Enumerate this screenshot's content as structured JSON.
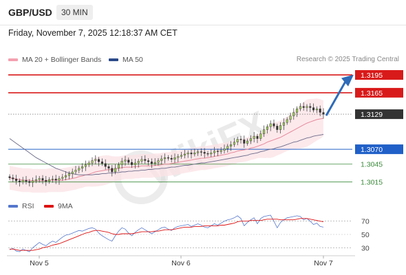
{
  "header": {
    "symbol": "GBP/USD",
    "timeframe": "30 MIN"
  },
  "datetime": "Friday, November 7, 2025 12:18:37 AM CET",
  "legend": {
    "ma": {
      "label": "MA 20 + Bollinger Bands",
      "color": "#f4a0b0"
    },
    "ma50": {
      "label": "MA 50",
      "color": "#2b4a8a"
    }
  },
  "source": "Research © 2025 Trading Central",
  "rsi_legend": {
    "rsi": {
      "label": "RSI",
      "color": "#5577cc"
    },
    "ma9": {
      "label": "9MA",
      "color": "#dd1111"
    }
  },
  "watermark": "WikiFX",
  "chart_data": {
    "type": "candlestick",
    "ylim": [
      1.2995,
      1.321
    ],
    "xticks": [
      "Nov 5",
      "Nov 6",
      "Nov 7"
    ],
    "last_price": 1.3129,
    "levels": [
      {
        "label": "1.3195",
        "value": 1.3195,
        "kind": "resistance",
        "color": "#d91a1a"
      },
      {
        "label": "1.3165",
        "value": 1.3165,
        "kind": "resistance",
        "color": "#d91a1a"
      },
      {
        "label": "1.3129",
        "value": 1.3129,
        "kind": "last",
        "color": "#333333"
      },
      {
        "label": "1.3070",
        "value": 1.307,
        "kind": "pivot",
        "color": "#2060c8"
      },
      {
        "label": "1.3045",
        "value": 1.3045,
        "kind": "support",
        "color": "#3a8a3a"
      },
      {
        "label": "1.3015",
        "value": 1.3015,
        "kind": "support",
        "color": "#3a8a3a"
      }
    ],
    "close": [
      1.3022,
      1.302,
      1.3017,
      1.3015,
      1.3018,
      1.3016,
      1.3014,
      1.3017,
      1.3019,
      1.3021,
      1.3018,
      1.3016,
      1.3019,
      1.302,
      1.3018,
      1.3021,
      1.3023,
      1.3026,
      1.3029,
      1.3032,
      1.3035,
      1.3038,
      1.3041,
      1.3044,
      1.3047,
      1.3051,
      1.3053,
      1.3049,
      1.3046,
      1.3041,
      1.3038,
      1.3032,
      1.3038,
      1.3044,
      1.305,
      1.3052,
      1.3048,
      1.3044,
      1.3047,
      1.305,
      1.3053,
      1.3051,
      1.3049,
      1.3046,
      1.3048,
      1.3051,
      1.3054,
      1.3056,
      1.3055,
      1.3053,
      1.3056,
      1.3058,
      1.306,
      1.3062,
      1.3064,
      1.3062,
      1.3064,
      1.3066,
      1.3065,
      1.3063,
      1.3062,
      1.3064,
      1.3067,
      1.3066,
      1.3068,
      1.3071,
      1.3075,
      1.3078,
      1.3082,
      1.3087,
      1.3086,
      1.308,
      1.3084,
      1.3088,
      1.3092,
      1.3088,
      1.3096,
      1.3103,
      1.3108,
      1.3113,
      1.3109,
      1.3103,
      1.311,
      1.3115,
      1.312,
      1.3126,
      1.3132,
      1.3138,
      1.3142,
      1.314,
      1.3142,
      1.314,
      1.3136,
      1.3138,
      1.3132,
      1.3129
    ],
    "ma20": [
      1.3022,
      1.3021,
      1.302,
      1.3019,
      1.3018,
      1.3018,
      1.3018,
      1.3017,
      1.3017,
      1.3017,
      1.3017,
      1.3017,
      1.3018,
      1.3018,
      1.3018,
      1.3018,
      1.3018,
      1.3019,
      1.302,
      1.3021,
      1.3022,
      1.3024,
      1.3025,
      1.3027,
      1.3028,
      1.303,
      1.3032,
      1.3033,
      1.3034,
      1.3035,
      1.3036,
      1.3036,
      1.3037,
      1.3038,
      1.3039,
      1.304,
      1.304,
      1.304,
      1.3041,
      1.3041,
      1.3042,
      1.3042,
      1.3042,
      1.3042,
      1.3043,
      1.3043,
      1.3044,
      1.3045,
      1.3045,
      1.3046,
      1.3047,
      1.3048,
      1.3049,
      1.305,
      1.3051,
      1.3052,
      1.3053,
      1.3054,
      1.3055,
      1.3055,
      1.3056,
      1.3057,
      1.3058,
      1.3059,
      1.306,
      1.3061,
      1.3062,
      1.3064,
      1.3065,
      1.3067,
      1.3068,
      1.3069,
      1.307,
      1.3072,
      1.3073,
      1.3075,
      1.3077,
      1.3079,
      1.3082,
      1.3084,
      1.3086,
      1.3088,
      1.309,
      1.3093,
      1.3096,
      1.3099,
      1.3102,
      1.3105,
      1.3108,
      1.3111,
      1.3114,
      1.3116,
      1.3118,
      1.312,
      1.3121,
      1.3122
    ],
    "ma50": [
      1.3088,
      1.3084,
      1.308,
      1.3076,
      1.3072,
      1.3068,
      1.3064,
      1.306,
      1.3056,
      1.3053,
      1.305,
      1.3047,
      1.3044,
      1.3041,
      1.3038,
      1.3036,
      1.3034,
      1.3032,
      1.303,
      1.3029,
      1.3028,
      1.3027,
      1.3027,
      1.3027,
      1.3027,
      1.3027,
      1.3028,
      1.3028,
      1.3029,
      1.3029,
      1.303,
      1.303,
      1.3031,
      1.3031,
      1.3032,
      1.3032,
      1.3033,
      1.3033,
      1.3034,
      1.3034,
      1.3035,
      1.3035,
      1.3036,
      1.3036,
      1.3037,
      1.3037,
      1.3038,
      1.3038,
      1.3039,
      1.304,
      1.304,
      1.3041,
      1.3042,
      1.3043,
      1.3043,
      1.3044,
      1.3045,
      1.3046,
      1.3047,
      1.3047,
      1.3048,
      1.3049,
      1.305,
      1.3051,
      1.3052,
      1.3053,
      1.3054,
      1.3055,
      1.3056,
      1.3057,
      1.3058,
      1.3059,
      1.306,
      1.3062,
      1.3063,
      1.3064,
      1.3066,
      1.3067,
      1.3069,
      1.307,
      1.3071,
      1.3073,
      1.3074,
      1.3076,
      1.3078,
      1.308,
      1.3082,
      1.3083,
      1.3085,
      1.3087,
      1.3089,
      1.309,
      1.3092,
      1.3093,
      1.3094,
      1.3095
    ],
    "rsi": {
      "ylim": [
        20,
        80
      ],
      "ticks": [
        "70",
        "50",
        "30"
      ],
      "rsi": [
        27,
        29,
        25,
        24,
        28,
        26,
        24,
        30,
        34,
        38,
        35,
        33,
        37,
        40,
        38,
        42,
        46,
        49,
        50,
        52,
        54,
        56,
        55,
        57,
        59,
        60,
        58,
        52,
        48,
        45,
        42,
        40,
        48,
        55,
        60,
        58,
        52,
        48,
        53,
        57,
        60,
        57,
        54,
        51,
        54,
        57,
        60,
        61,
        58,
        56,
        60,
        62,
        63,
        64,
        65,
        62,
        64,
        66,
        64,
        61,
        60,
        63,
        66,
        64,
        67,
        70,
        72,
        73,
        75,
        78,
        74,
        63,
        68,
        72,
        75,
        66,
        74,
        77,
        78,
        79,
        70,
        60,
        68,
        72,
        75,
        76,
        77,
        78,
        77,
        72,
        74,
        70,
        65,
        67,
        62,
        61
      ],
      "ma9": [
        28,
        28,
        27,
        26,
        26,
        26,
        26,
        26,
        27,
        28,
        30,
        31,
        32,
        34,
        35,
        36,
        38,
        40,
        42,
        44,
        46,
        48,
        50,
        52,
        53,
        55,
        56,
        56,
        55,
        54,
        53,
        51,
        50,
        50,
        51,
        51,
        51,
        51,
        52,
        53,
        54,
        54,
        54,
        54,
        55,
        55,
        56,
        57,
        57,
        57,
        58,
        59,
        60,
        61,
        61,
        61,
        62,
        62,
        62,
        63,
        63,
        63,
        63,
        63,
        64,
        64,
        65,
        66,
        67,
        69,
        70,
        70,
        70,
        71,
        71,
        71,
        71,
        72,
        73,
        73,
        73,
        73,
        72,
        72,
        72,
        72,
        72,
        73,
        74,
        74,
        74,
        73,
        72,
        71,
        70,
        69
      ]
    }
  }
}
